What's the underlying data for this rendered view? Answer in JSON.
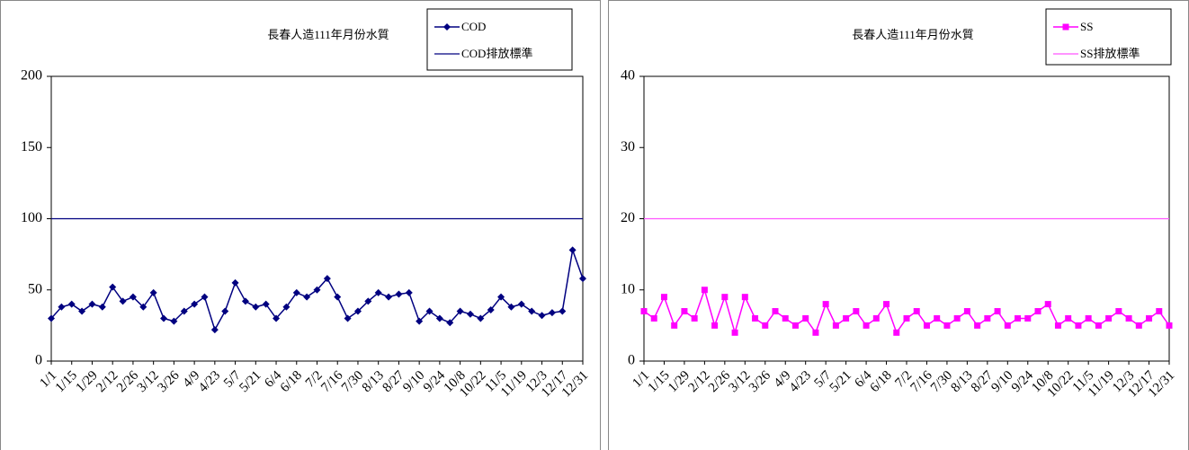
{
  "chart_data": [
    {
      "type": "line",
      "title": "長春人造111年月份水質",
      "categories": [
        "1/1",
        null,
        "1/15",
        null,
        "1/29",
        null,
        "2/12",
        null,
        "2/26",
        null,
        "3/12",
        null,
        "3/26",
        null,
        "4/9",
        null,
        "4/23",
        null,
        "5/7",
        null,
        "5/21",
        null,
        "6/4",
        null,
        "6/18",
        null,
        "7/2",
        null,
        "7/16",
        null,
        "7/30",
        null,
        "8/13",
        null,
        "8/27",
        null,
        "9/10",
        null,
        "9/24",
        null,
        "10/8",
        null,
        "10/22",
        null,
        "11/5",
        null,
        "11/19",
        null,
        "12/3",
        null,
        "12/17",
        null,
        "12/31"
      ],
      "series": [
        {
          "name": "COD",
          "color": "#000080",
          "marker": "diamond",
          "values": [
            30,
            38,
            40,
            35,
            40,
            38,
            52,
            42,
            45,
            38,
            48,
            30,
            28,
            35,
            40,
            45,
            22,
            35,
            55,
            42,
            38,
            40,
            30,
            38,
            48,
            45,
            50,
            58,
            45,
            30,
            35,
            42,
            48,
            45,
            47,
            48,
            28,
            35,
            30,
            27,
            35,
            33,
            30,
            36,
            45,
            38,
            40,
            35,
            32,
            34,
            35,
            78,
            58
          ]
        }
      ],
      "standard": {
        "name": "COD排放標準",
        "value": 100,
        "color": "#000080"
      },
      "ylim": [
        0,
        200
      ],
      "yticks": [
        0,
        50,
        100,
        150,
        200
      ]
    },
    {
      "type": "line",
      "title": "長春人造111年月份水質",
      "categories": [
        "1/1",
        null,
        "1/15",
        null,
        "1/29",
        null,
        "2/12",
        null,
        "2/26",
        null,
        "3/12",
        null,
        "3/26",
        null,
        "4/9",
        null,
        "4/23",
        null,
        "5/7",
        null,
        "5/21",
        null,
        "6/4",
        null,
        "6/18",
        null,
        "7/2",
        null,
        "7/16",
        null,
        "7/30",
        null,
        "8/13",
        null,
        "8/27",
        null,
        "9/10",
        null,
        "9/24",
        null,
        "10/8",
        null,
        "10/22",
        null,
        "11/5",
        null,
        "11/19",
        null,
        "12/3",
        null,
        "12/17",
        null,
        "12/31"
      ],
      "series": [
        {
          "name": "SS",
          "color": "#ff00ff",
          "marker": "square",
          "values": [
            7,
            6,
            9,
            5,
            7,
            6,
            10,
            5,
            9,
            4,
            9,
            6,
            5,
            7,
            6,
            5,
            6,
            4,
            8,
            5,
            6,
            7,
            5,
            6,
            8,
            4,
            6,
            7,
            5,
            6,
            5,
            6,
            7,
            5,
            6,
            7,
            5,
            6,
            6,
            7,
            8,
            5,
            6,
            5,
            6,
            5,
            6,
            7,
            6,
            5,
            6,
            7,
            5
          ]
        }
      ],
      "standard": {
        "name": "SS排放標準",
        "value": 20,
        "color": "#ff55ff"
      },
      "ylim": [
        0,
        40
      ],
      "yticks": [
        0,
        10,
        20,
        30,
        40
      ]
    }
  ]
}
